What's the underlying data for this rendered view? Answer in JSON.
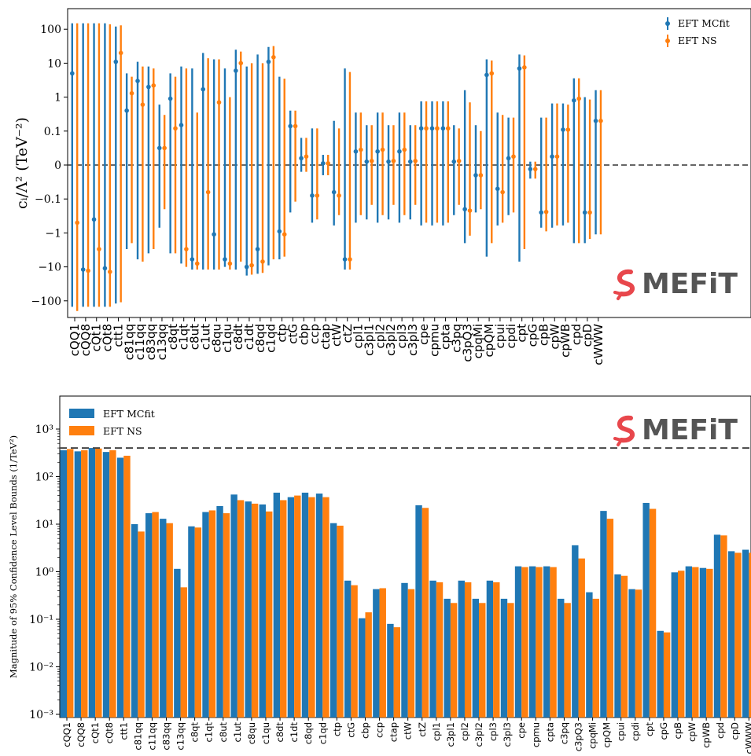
{
  "colors": {
    "mc": "#1f77b4",
    "ns": "#ff7f0e",
    "logo_mark": "#e8474c",
    "logo_text": "#555555"
  },
  "logo": {
    "text": "MEFiT"
  },
  "chart_data": [
    {
      "type": "errorbar",
      "ylabel": "$c_i/\\Lambda^2$ (TeV$^{-2}$)",
      "yscale": "symlog",
      "ylim": [
        -200,
        200
      ],
      "ytick_labels": [
        "100",
        "10",
        "1",
        "0.1",
        "0",
        "−0.1",
        "−1",
        "−10",
        "−100"
      ],
      "legend": {
        "position": "top-right",
        "entries": [
          "EFT MCfit",
          "EFT NS"
        ]
      },
      "reference_line": 0,
      "categories": [
        "cQQ1",
        "cQQ8",
        "cQt1",
        "cQt8",
        "ctt1",
        "c81qq",
        "c11qq",
        "c83qq",
        "c13qq",
        "c8qt",
        "c1qt",
        "c8ut",
        "c1ut",
        "c8qu",
        "c1qu",
        "c8dt",
        "c1dt",
        "c8qd",
        "c1qd",
        "ctp",
        "ctG",
        "cbp",
        "ccp",
        "ctap",
        "ctW",
        "ctZ",
        "cpl1",
        "c3pl1",
        "cpl2",
        "c3pl2",
        "cpl3",
        "c3pl3",
        "cpe",
        "cpmu",
        "cpta",
        "c3pq",
        "c3pQ3",
        "cpqMi",
        "cpQM",
        "cpui",
        "cpdi",
        "cpt",
        "cpG",
        "cpB",
        "cpW",
        "cpWB",
        "cpd",
        "cpD",
        "cWWW"
      ],
      "series": [
        {
          "name": "EFT MCfit",
          "center": [
            5,
            -12,
            -0.4,
            -11,
            11,
            0.4,
            3,
            2,
            0.05,
            0.9,
            0.15,
            -6,
            1.7,
            -1.1,
            -6,
            6,
            -10,
            -3,
            11,
            -0.9,
            0.14,
            0.02,
            -0.09,
            0.005,
            -0.08,
            -6,
            0.04,
            0.01,
            0.04,
            0.01,
            0.04,
            0.01,
            0.12,
            0.12,
            0.12,
            0.01,
            -0.2,
            -0.03,
            4.5,
            -0.07,
            0.02,
            7,
            -0.012,
            -0.25,
            0.025,
            0.11,
            0.8,
            -0.25,
            0.2
          ],
          "lower": [
            -150,
            -150,
            -150,
            -150,
            -120,
            -3,
            -6,
            -4,
            -0.7,
            -4,
            -8,
            -12,
            -12,
            -12,
            -10,
            -12,
            -18,
            -16,
            -9,
            -6,
            -0.25,
            -0.02,
            -0.5,
            -0.03,
            -0.6,
            -12,
            -0.5,
            -0.4,
            -0.5,
            -0.4,
            -0.5,
            -0.4,
            -0.6,
            -0.6,
            -0.6,
            -0.3,
            -2,
            -0.25,
            -5,
            -0.6,
            -0.3,
            -7,
            -0.04,
            -0.7,
            -0.7,
            -0.6,
            -2,
            -2,
            -1.1
          ],
          "upper": [
            150,
            150,
            150,
            150,
            120,
            5,
            11,
            8,
            0.6,
            5,
            8,
            7,
            20,
            13,
            7,
            25,
            8,
            18,
            30,
            4,
            0.4,
            0.08,
            0.12,
            0.03,
            0.2,
            7,
            0.35,
            0.15,
            0.35,
            0.15,
            0.35,
            0.15,
            0.75,
            0.75,
            0.75,
            0.15,
            1.6,
            0.15,
            13,
            0.35,
            0.25,
            18,
            0.01,
            0.25,
            0.65,
            0.65,
            3.6,
            1.0,
            1.6
          ]
        },
        {
          "name": "EFT NS",
          "center": [
            -0.5,
            -13,
            -3,
            -14,
            20,
            1.3,
            0.6,
            2.2,
            0.05,
            0.12,
            -3,
            -8,
            -0.08,
            0.7,
            -8,
            10,
            -9,
            -7,
            15,
            -1.1,
            0.14,
            0.025,
            -0.09,
            0.005,
            -0.09,
            -6,
            0.045,
            0.012,
            0.045,
            0.012,
            0.045,
            0.012,
            0.12,
            0.12,
            0.12,
            0.012,
            -0.22,
            -0.03,
            5,
            -0.08,
            0.025,
            7.5,
            -0.012,
            -0.24,
            0.025,
            0.11,
            0.9,
            -0.25,
            0.2
          ],
          "lower": [
            -200,
            -150,
            -150,
            -150,
            -110,
            -2,
            -7,
            -3,
            -0.2,
            -4,
            -10,
            -12,
            -12,
            -12,
            -12,
            -7,
            -17,
            -15,
            -6,
            -5,
            -0.12,
            -0.02,
            -0.4,
            -0.03,
            -0.3,
            -12,
            -0.3,
            -0.15,
            -0.3,
            -0.15,
            -0.3,
            -0.15,
            -0.5,
            -0.5,
            -0.5,
            -0.15,
            -1.2,
            -0.2,
            -2,
            -0.5,
            -0.25,
            -3,
            -0.04,
            -0.9,
            -0.6,
            -0.5,
            -2,
            -1.5,
            -1.1
          ],
          "upper": [
            150,
            150,
            150,
            140,
            130,
            4,
            8,
            7,
            0.3,
            4,
            7,
            0.35,
            14,
            13,
            1,
            22,
            10,
            10,
            32,
            3.5,
            0.4,
            0.08,
            0.12,
            0.03,
            0.12,
            5.5,
            0.35,
            0.15,
            0.35,
            0.15,
            0.35,
            0.15,
            0.75,
            0.75,
            0.75,
            0.12,
            0.7,
            0.1,
            12,
            0.3,
            0.25,
            17,
            0.01,
            0.25,
            0.65,
            0.6,
            3.6,
            0.85,
            1.6
          ]
        }
      ]
    },
    {
      "type": "bar",
      "ylabel": "Magnitude of 95% Confidence Level Bounds (1/TeV$^2$)",
      "yscale": "log",
      "ylim": [
        0.001,
        5000
      ],
      "ytick_labels": [
        "10⁻³",
        "10⁻²",
        "10⁻¹",
        "10⁰",
        "10¹",
        "10²",
        "10³"
      ],
      "legend": {
        "position": "top-left",
        "entries": [
          "EFT MCfit",
          "EFT NS"
        ]
      },
      "reference_line": 400,
      "categories": [
        "cQQ1",
        "cQQ8",
        "cQt1",
        "cQt8",
        "ctt1",
        "c81qq",
        "c11qq",
        "c83qq",
        "c13qq",
        "c8qt",
        "c1qt",
        "c8ut",
        "c1ut",
        "c8qu",
        "c1qu",
        "c8dt",
        "c1dt",
        "c8qd",
        "c1qd",
        "ctp",
        "ctG",
        "cbp",
        "ccp",
        "ctap",
        "ctW",
        "ctZ",
        "cpl1",
        "c3pl1",
        "cpl2",
        "c3pl2",
        "cpl3",
        "c3pl3",
        "cpe",
        "cpmu",
        "cpta",
        "c3pq",
        "c3pQ3",
        "cpqMi",
        "cpQM",
        "cpui",
        "cpdi",
        "cpt",
        "cpG",
        "cpB",
        "cpW",
        "cpWB",
        "cpd",
        "cpD",
        "cWWW"
      ],
      "series": [
        {
          "name": "EFT MCfit",
          "values": [
            360,
            340,
            400,
            330,
            250,
            10,
            17,
            13,
            1.15,
            9,
            18,
            24,
            42,
            30,
            26,
            46,
            37,
            46,
            44,
            10.5,
            0.65,
            0.105,
            0.43,
            0.08,
            0.58,
            25,
            0.65,
            0.27,
            0.65,
            0.27,
            0.65,
            0.27,
            1.3,
            1.3,
            1.3,
            0.27,
            3.6,
            0.37,
            19,
            0.88,
            0.43,
            28,
            0.057,
            0.97,
            1.3,
            1.2,
            6,
            2.7,
            2.9
          ]
        },
        {
          "name": "EFT NS",
          "values": [
            380,
            360,
            390,
            360,
            275,
            7,
            18,
            10.5,
            0.47,
            8.5,
            19.5,
            17,
            32,
            27,
            18.5,
            32,
            40,
            37,
            37,
            9.3,
            0.52,
            0.14,
            0.45,
            0.068,
            0.43,
            22,
            0.6,
            0.22,
            0.6,
            0.22,
            0.6,
            0.22,
            1.25,
            1.25,
            1.25,
            0.22,
            1.9,
            0.27,
            13,
            0.82,
            0.42,
            21,
            0.053,
            1.05,
            1.25,
            1.15,
            5.8,
            2.5,
            2.5
          ]
        }
      ]
    }
  ]
}
